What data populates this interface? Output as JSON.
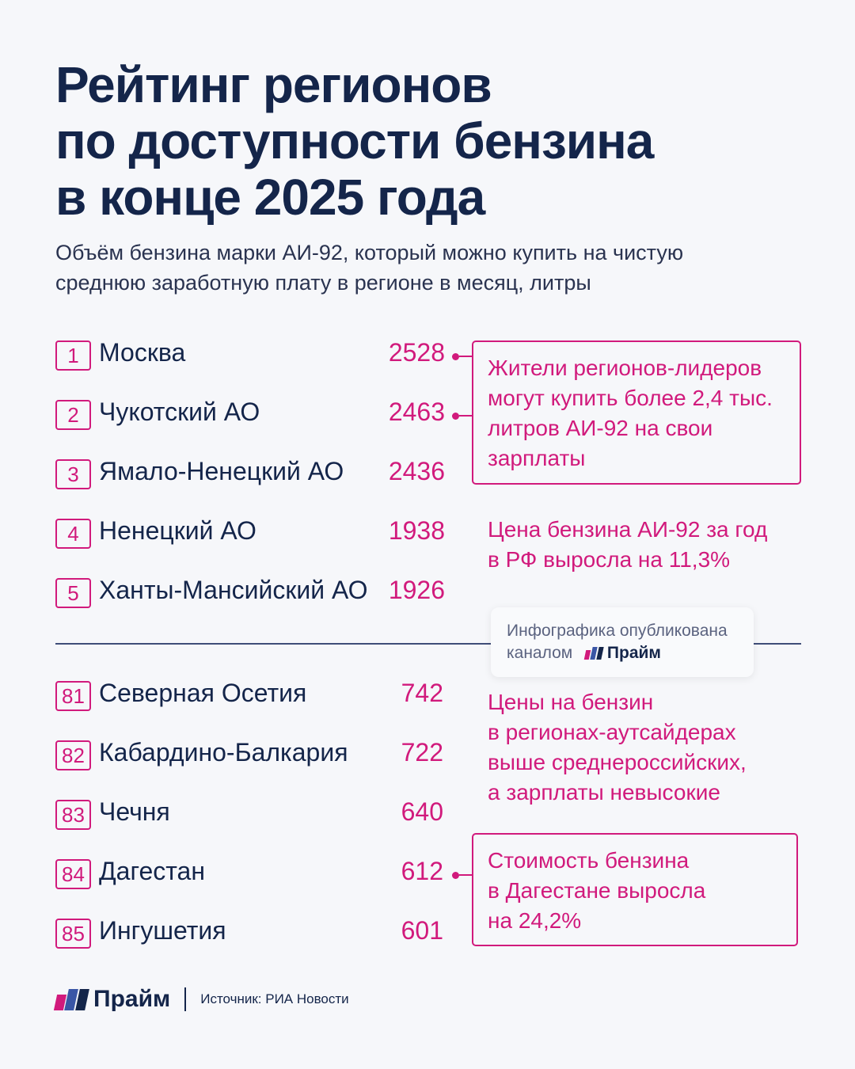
{
  "title": "Рейтинг регионов\nпо доступности бензина\nв конце 2025 года",
  "subtitle": "Объём бензина марки АИ-92, который можно купить на чистую\nсреднюю заработную плату в регионе в месяц, литры",
  "top": [
    {
      "rank": "1",
      "name": "Москва",
      "value": "2528"
    },
    {
      "rank": "2",
      "name": "Чукотский АО",
      "value": "2463"
    },
    {
      "rank": "3",
      "name": "Ямало-Ненецкий АО",
      "value": "2436"
    },
    {
      "rank": "4",
      "name": "Ненецкий АО",
      "value": "1938"
    },
    {
      "rank": "5",
      "name": "Ханты-Мансийский АО",
      "value": "1926"
    }
  ],
  "bottom": [
    {
      "rank": "81",
      "name": "Северная Осетия",
      "value": "742"
    },
    {
      "rank": "82",
      "name": "Кабардино-Балкария",
      "value": "722"
    },
    {
      "rank": "83",
      "name": "Чечня",
      "value": "640"
    },
    {
      "rank": "84",
      "name": "Дагестан",
      "value": "612"
    },
    {
      "rank": "85",
      "name": "Ингушетия",
      "value": "601"
    }
  ],
  "callouts": {
    "leaders": "Жители регионов-лидеров\nмогут купить более 2,4 тыс.\nлитров АИ-92 на свои\nзарплаты",
    "price_growth": "Цена бензина АИ-92 за год\nв РФ выросла на 11,3%",
    "outsiders": "Цены на бензин\nв регионах-аутсайдерах\nвыше среднероссийских,\nа зарплаты невысокие",
    "dagestan": "Стоимость бензина\nв Дагестане выросла\nна 24,2%"
  },
  "published": {
    "line1": "Инфографика опубликована",
    "line2": "каналом",
    "brand": "Прайм"
  },
  "footer": {
    "brand": "Прайм",
    "source": "Источник: РИА Новости"
  },
  "colors": {
    "accent": "#d11a7c",
    "navy": "#14254a",
    "blue": "#3a56a6",
    "background": "#f6f7fa"
  }
}
